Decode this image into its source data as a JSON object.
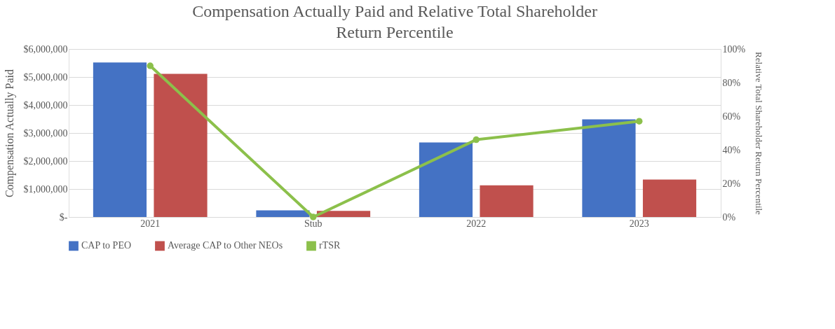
{
  "chart_data": {
    "type": "bar",
    "title": "Compensation Actually Paid and Relative Total Shareholder Return Percentile",
    "ylabel": "Compensation Actually Paid",
    "y2label": "Relative Total Shareholder Return Percentile",
    "categories": [
      "2021",
      "Stub",
      "2022",
      "2023"
    ],
    "series": [
      {
        "name": "CAP to PEO",
        "color": "#4472c4",
        "values": [
          5520000,
          240000,
          2660000,
          3490000
        ]
      },
      {
        "name": "Average CAP to Other NEOs",
        "color": "#c0504d",
        "values": [
          5110000,
          220000,
          1130000,
          1340000
        ]
      },
      {
        "name": "rTSR",
        "type": "line",
        "axis": "y2",
        "color": "#8cc04b",
        "marker": "circle",
        "values": [
          90,
          0,
          46,
          57
        ]
      }
    ],
    "ylim": [
      0,
      6000000
    ],
    "yticks": [
      {
        "value": 0,
        "label": "$-"
      },
      {
        "value": 1000000,
        "label": "$1,000,000"
      },
      {
        "value": 2000000,
        "label": "$2,000,000"
      },
      {
        "value": 3000000,
        "label": "$3,000,000"
      },
      {
        "value": 4000000,
        "label": "$4,000,000"
      },
      {
        "value": 5000000,
        "label": "$5,000,000"
      },
      {
        "value": 6000000,
        "label": "$6,000,000"
      }
    ],
    "y2lim": [
      0,
      100
    ],
    "y2ticks": [
      {
        "value": 0,
        "label": "0%"
      },
      {
        "value": 20,
        "label": "20%"
      },
      {
        "value": 40,
        "label": "40%"
      },
      {
        "value": 60,
        "label": "60%"
      },
      {
        "value": 80,
        "label": "80%"
      },
      {
        "value": 100,
        "label": "100%"
      }
    ],
    "grid": "y",
    "legend": "bottom"
  }
}
